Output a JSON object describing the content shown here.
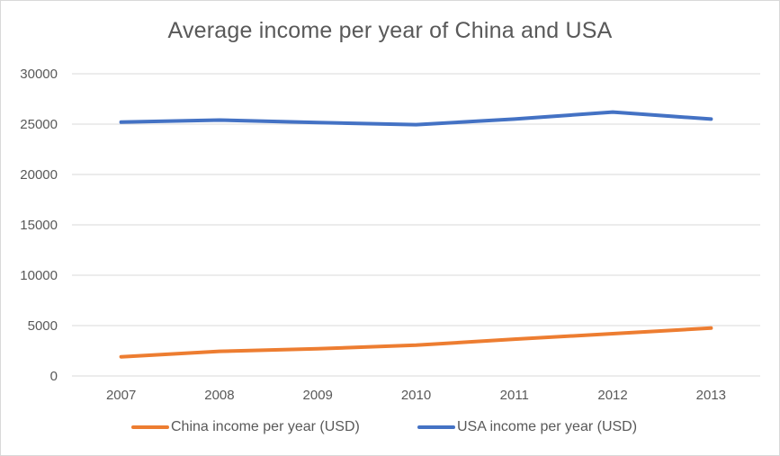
{
  "chart_data": {
    "type": "line",
    "title": "Average income per year of China and USA",
    "xlabel": "",
    "ylabel": "",
    "categories": [
      "2007",
      "2008",
      "2009",
      "2010",
      "2011",
      "2012",
      "2013"
    ],
    "yticks": [
      "0",
      "5000",
      "10000",
      "15000",
      "20000",
      "25000",
      "30000"
    ],
    "ylim": [
      0,
      30000
    ],
    "grid": true,
    "legend_position": "bottom",
    "series": [
      {
        "name": "China income per year (USD)",
        "color": "#ED7D31",
        "values": [
          1900,
          2450,
          2700,
          3050,
          3650,
          4200,
          4750
        ]
      },
      {
        "name": "USA income per year (USD)",
        "color": "#4472C4",
        "values": [
          25200,
          25400,
          25150,
          24950,
          25500,
          26200,
          25500
        ]
      }
    ]
  }
}
